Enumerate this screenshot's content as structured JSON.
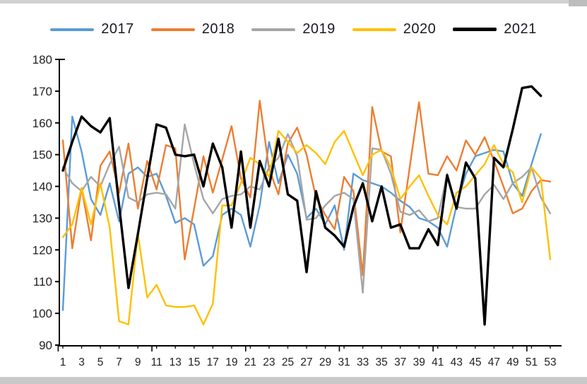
{
  "chart_data": {
    "type": "line",
    "title": "",
    "xlabel": "",
    "ylabel": "",
    "xlim": [
      1,
      53
    ],
    "ylim": [
      90,
      180
    ],
    "grid": false,
    "legend_position": "top",
    "x_tick_labels": [
      "1",
      "3",
      "5",
      "7",
      "9",
      "11",
      "13",
      "15",
      "17",
      "19",
      "21",
      "23",
      "25",
      "27",
      "29",
      "31",
      "33",
      "35",
      "37",
      "39",
      "41",
      "43",
      "45",
      "47",
      "49",
      "51",
      "53"
    ],
    "y_tick_labels": [
      "180",
      "170",
      "160",
      "150",
      "140",
      "130",
      "120",
      "110",
      "100",
      "90"
    ],
    "x": [
      1,
      2,
      3,
      4,
      5,
      6,
      7,
      8,
      9,
      10,
      11,
      12,
      13,
      14,
      15,
      16,
      17,
      18,
      19,
      20,
      21,
      22,
      23,
      24,
      25,
      26,
      27,
      28,
      29,
      30,
      31,
      32,
      33,
      34,
      35,
      36,
      37,
      38,
      39,
      40,
      41,
      42,
      43,
      44,
      45,
      46,
      47,
      48,
      49,
      50,
      51,
      52,
      53
    ],
    "series": [
      {
        "name": "2017",
        "color": "#5B9BD5",
        "line_width": 2.4,
        "values": [
          101,
          162,
          151,
          136,
          131,
          141,
          129,
          144,
          146,
          143,
          144,
          137,
          128.5,
          130,
          128,
          115,
          118,
          131,
          133,
          131,
          121,
          134,
          154,
          141,
          150,
          144,
          130,
          133,
          128,
          134,
          120,
          144,
          142,
          141,
          140,
          138,
          135.5,
          133.5,
          130,
          129,
          127,
          121,
          134,
          144,
          149.5,
          150.5,
          151.5,
          151,
          141,
          137,
          147,
          156.5
        ]
      },
      {
        "name": "2018",
        "color": "#ED7D31",
        "line_width": 2.4,
        "values": [
          154.5,
          120.5,
          139.5,
          123,
          146.5,
          151,
          138,
          153.5,
          133,
          148,
          139,
          153,
          152,
          117,
          133,
          149.5,
          138,
          148.5,
          159,
          142.5,
          136.5,
          167,
          145.5,
          137.5,
          153.5,
          158.5,
          150,
          136.5,
          131,
          126.5,
          143,
          138.5,
          112,
          165,
          151,
          149.5,
          125.5,
          146,
          166.5,
          144,
          143.5,
          149.5,
          145,
          154.5,
          150,
          155.5,
          148,
          140,
          131.5,
          133,
          138.5,
          142,
          141.5
        ]
      },
      {
        "name": "2019",
        "color": "#A5A5A5",
        "line_width": 2.4,
        "values": [
          146,
          141,
          138.5,
          143,
          140,
          147,
          152.5,
          136.5,
          135,
          137.5,
          138,
          137.5,
          133,
          159.5,
          147,
          136,
          131.5,
          136,
          137,
          137.5,
          140,
          139,
          146,
          149,
          156.5,
          149.5,
          129.5,
          130,
          134,
          137,
          138,
          136,
          106.5,
          152,
          151.5,
          144,
          132,
          131,
          132.5,
          129,
          130,
          144,
          133.5,
          133,
          133,
          137.5,
          140.5,
          136,
          141,
          143,
          146,
          136.5,
          131.5
        ]
      },
      {
        "name": "2020",
        "color": "#FFC000",
        "line_width": 2.4,
        "values": [
          124,
          128,
          139.5,
          128,
          141,
          127,
          97.5,
          96.5,
          125,
          105,
          109,
          102.5,
          102,
          102,
          102.5,
          96.5,
          103,
          134,
          134,
          141,
          149,
          147,
          143,
          157.5,
          154,
          150.5,
          153,
          150.5,
          147,
          154,
          157.5,
          150.5,
          143.5,
          150,
          151.5,
          146,
          136,
          140,
          143.5,
          137,
          131,
          128,
          138,
          140,
          143.5,
          147,
          153,
          147,
          144.5,
          135,
          146,
          142.5,
          117
        ]
      },
      {
        "name": "2021",
        "color": "#000000",
        "line_width": 3.4,
        "values": [
          145,
          154,
          162,
          159,
          157,
          161.5,
          134,
          108,
          125,
          142.5,
          159.5,
          158.5,
          150,
          149.5,
          150,
          140,
          153.5,
          146,
          127,
          151,
          127,
          148,
          140,
          155,
          137.5,
          135.5,
          113,
          138.5,
          127,
          124.5,
          121,
          133.5,
          141,
          129,
          140,
          127,
          128,
          120.5,
          120.5,
          126.5,
          121.5,
          143.5,
          133,
          147.5,
          142.5,
          96.5,
          149,
          146,
          158,
          171,
          171.5,
          168.5
        ]
      }
    ]
  }
}
